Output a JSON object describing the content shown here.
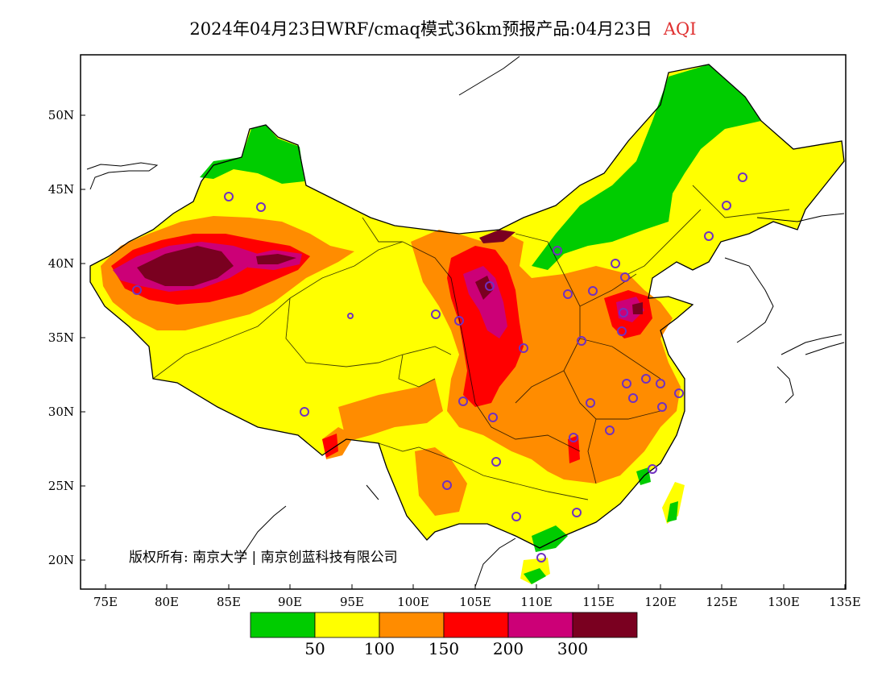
{
  "title": {
    "main": "2024年04月23日WRF/cmaq模式36km预报产品:04月23日",
    "variable": "AQI"
  },
  "axes": {
    "x_ticks": [
      "75E",
      "80E",
      "85E",
      "90E",
      "95E",
      "100E",
      "105E",
      "110E",
      "115E",
      "120E",
      "125E",
      "130E",
      "135E"
    ],
    "y_ticks": [
      "50N",
      "45N",
      "40N",
      "35N",
      "30N",
      "25N",
      "20N"
    ]
  },
  "copyright": "版权所有: 南京大学 | 南京创蓝科技有限公司",
  "legend": {
    "colors": [
      "#00cc00",
      "#ffff00",
      "#ff8c00",
      "#ff0000",
      "#cc0077",
      "#7a0020"
    ],
    "labels": [
      "50",
      "100",
      "150",
      "200",
      "300"
    ]
  },
  "colors": {
    "good": "#00cc00",
    "moderate": "#ffff00",
    "unhealthy_sensitive": "#ff8c00",
    "unhealthy": "#ff0000",
    "very_unhealthy": "#cc0077",
    "hazardous": "#7a0020",
    "station_ring": "#7030c0"
  }
}
